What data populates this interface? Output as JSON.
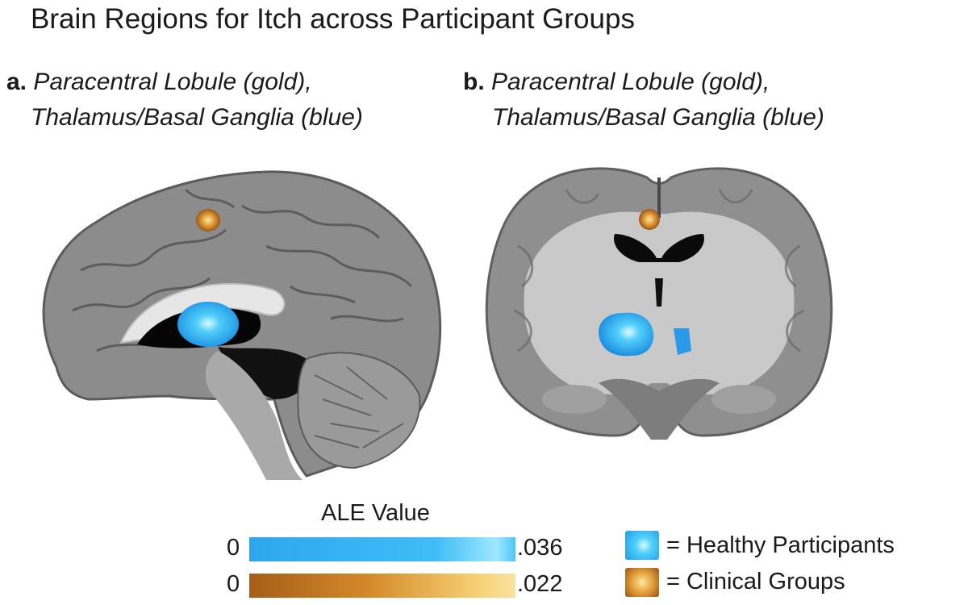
{
  "title": "Brain Regions for Itch across Participant Groups",
  "panels": [
    {
      "letter": "a.",
      "caption_line1": "Paracentral Lobule (gold),",
      "caption_line2": "Thalamus/Basal Ganglia (blue)",
      "view": "sagittal"
    },
    {
      "letter": "b.",
      "caption_line1": "Paracentral Lobule (gold),",
      "caption_line2": "Thalamus/Basal Ganglia (blue)",
      "view": "coronal"
    }
  ],
  "colorbar": {
    "title": "ALE Value",
    "blue": {
      "min": "0",
      "max": ".036"
    },
    "gold": {
      "min": "0",
      "max": ".022"
    }
  },
  "legend": {
    "healthy": "= Healthy Participants",
    "clinical": "= Clinical Groups"
  },
  "colors": {
    "healthy_blue": "#2ea6ee",
    "clinical_gold": "#d48a2a",
    "brain_gray": "#8a8a8a"
  }
}
